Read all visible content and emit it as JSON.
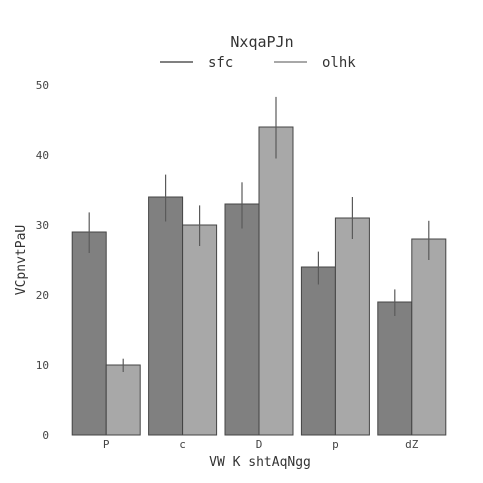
{
  "chart_data": {
    "type": "bar",
    "title": "NxqaPJn",
    "xlabel": "VW K shtAqNgg",
    "ylabel": "VCpnvtPaU",
    "categories": [
      "P",
      "c",
      "D",
      "p",
      "dZ"
    ],
    "ylim": [
      0,
      50
    ],
    "yticks": [
      0,
      10,
      20,
      30,
      40,
      50
    ],
    "grid": false,
    "legend_position": "top-center",
    "series": [
      {
        "name": "sfc",
        "color": "#808080",
        "values": [
          29,
          34,
          33,
          24,
          19
        ],
        "error": [
          [
            26,
            31.8
          ],
          [
            30.5,
            37.2
          ],
          [
            29.5,
            36.1
          ],
          [
            21.5,
            26.2
          ],
          [
            17,
            20.8
          ]
        ]
      },
      {
        "name": "olhk",
        "color": "#a8a8a8",
        "values": [
          10,
          30,
          44,
          31,
          28
        ],
        "error": [
          [
            9,
            10.9
          ],
          [
            27,
            32.8
          ],
          [
            39.5,
            48.3
          ],
          [
            28,
            34
          ],
          [
            25,
            30.6
          ]
        ]
      }
    ]
  }
}
